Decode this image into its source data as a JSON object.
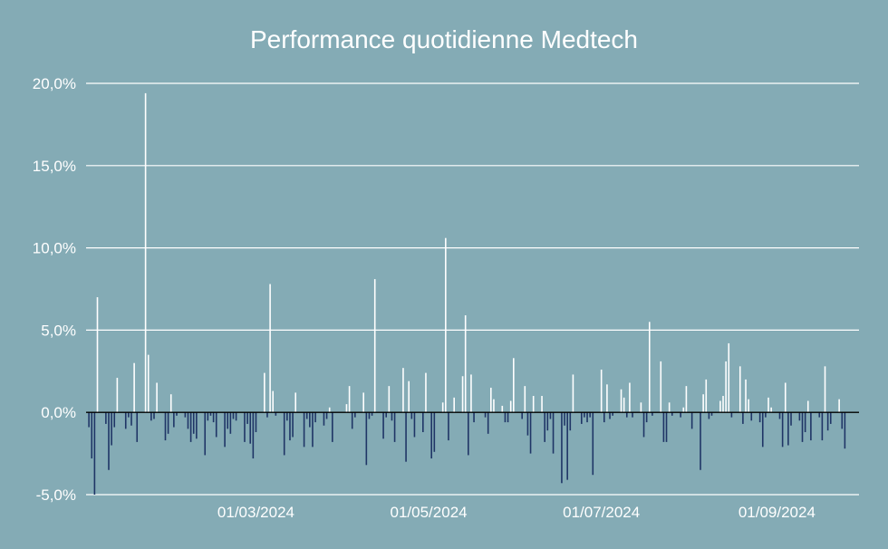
{
  "chart_data": {
    "type": "bar",
    "title": "Performance quotidienne Medtech",
    "xlabel": "",
    "ylabel": "",
    "ylim": [
      -5.0,
      20.0
    ],
    "y_ticks": [
      "-5,0%",
      "0,0%",
      "5,0%",
      "10,0%",
      "15,0%",
      "20,0%"
    ],
    "y_tick_values": [
      -5,
      0,
      5,
      10,
      15,
      20
    ],
    "x_range": [
      "2024-01-01",
      "2024-09-30"
    ],
    "x_ticks": [
      "01/03/2024",
      "01/05/2024",
      "01/07/2024",
      "01/09/2024"
    ],
    "x_tick_dates": [
      "2024-03-01",
      "2024-05-01",
      "2024-07-01",
      "2024-09-01"
    ],
    "grid": true,
    "legend": "none",
    "colors": {
      "background": "#84abb5",
      "positive": "#ffffff",
      "negative": "#1f3566",
      "zero_line": "#000000",
      "grid": "#ffffff"
    },
    "series": [
      {
        "dates": [
          "2024-01-02",
          "2024-01-03",
          "2024-01-04",
          "2024-01-05",
          "2024-01-08",
          "2024-01-09",
          "2024-01-10",
          "2024-01-11",
          "2024-01-12",
          "2024-01-15",
          "2024-01-16",
          "2024-01-17",
          "2024-01-18",
          "2024-01-19",
          "2024-01-22",
          "2024-01-23",
          "2024-01-24",
          "2024-01-25",
          "2024-01-26",
          "2024-01-29",
          "2024-01-30",
          "2024-01-31",
          "2024-02-01",
          "2024-02-02",
          "2024-02-05",
          "2024-02-06",
          "2024-02-07",
          "2024-02-08",
          "2024-02-09",
          "2024-02-12",
          "2024-02-13",
          "2024-02-14",
          "2024-02-15",
          "2024-02-16",
          "2024-02-19",
          "2024-02-20",
          "2024-02-21",
          "2024-02-22",
          "2024-02-23",
          "2024-02-26",
          "2024-02-27",
          "2024-02-28",
          "2024-02-29",
          "2024-03-01",
          "2024-03-04",
          "2024-03-05",
          "2024-03-06",
          "2024-03-07",
          "2024-03-08",
          "2024-03-11",
          "2024-03-12",
          "2024-03-13",
          "2024-03-14",
          "2024-03-15",
          "2024-03-18",
          "2024-03-19",
          "2024-03-20",
          "2024-03-21",
          "2024-03-22",
          "2024-03-25",
          "2024-03-26",
          "2024-03-27",
          "2024-03-28",
          "2024-04-02",
          "2024-04-03",
          "2024-04-04",
          "2024-04-05",
          "2024-04-08",
          "2024-04-09",
          "2024-04-10",
          "2024-04-11",
          "2024-04-12",
          "2024-04-15",
          "2024-04-16",
          "2024-04-17",
          "2024-04-18",
          "2024-04-19",
          "2024-04-22",
          "2024-04-23",
          "2024-04-24",
          "2024-04-25",
          "2024-04-26",
          "2024-04-29",
          "2024-04-30",
          "2024-05-02",
          "2024-05-03",
          "2024-05-06",
          "2024-05-07",
          "2024-05-08",
          "2024-05-10",
          "2024-05-13",
          "2024-05-14",
          "2024-05-15",
          "2024-05-16",
          "2024-05-17",
          "2024-05-21",
          "2024-05-22",
          "2024-05-23",
          "2024-05-24",
          "2024-05-27",
          "2024-05-28",
          "2024-05-29",
          "2024-05-30",
          "2024-05-31",
          "2024-06-03",
          "2024-06-04",
          "2024-06-05",
          "2024-06-06",
          "2024-06-07",
          "2024-06-10",
          "2024-06-11",
          "2024-06-12",
          "2024-06-13",
          "2024-06-14",
          "2024-06-17",
          "2024-06-18",
          "2024-06-19",
          "2024-06-20",
          "2024-06-21",
          "2024-06-24",
          "2024-06-25",
          "2024-06-26",
          "2024-06-27",
          "2024-06-28",
          "2024-07-01",
          "2024-07-02",
          "2024-07-03",
          "2024-07-04",
          "2024-07-05",
          "2024-07-08",
          "2024-07-09",
          "2024-07-10",
          "2024-07-11",
          "2024-07-12",
          "2024-07-15",
          "2024-07-16",
          "2024-07-17",
          "2024-07-18",
          "2024-07-19",
          "2024-07-22",
          "2024-07-23",
          "2024-07-24",
          "2024-07-25",
          "2024-07-26",
          "2024-07-29",
          "2024-07-30",
          "2024-07-31",
          "2024-08-02",
          "2024-08-05",
          "2024-08-06",
          "2024-08-07",
          "2024-08-08",
          "2024-08-09",
          "2024-08-12",
          "2024-08-13",
          "2024-08-14",
          "2024-08-15",
          "2024-08-16",
          "2024-08-19",
          "2024-08-20",
          "2024-08-21",
          "2024-08-22",
          "2024-08-23",
          "2024-08-26",
          "2024-08-27",
          "2024-08-28",
          "2024-08-29",
          "2024-08-30",
          "2024-09-02",
          "2024-09-03",
          "2024-09-04",
          "2024-09-05",
          "2024-09-06",
          "2024-09-09",
          "2024-09-10",
          "2024-09-11",
          "2024-09-12",
          "2024-09-13",
          "2024-09-16",
          "2024-09-17",
          "2024-09-18",
          "2024-09-19",
          "2024-09-20",
          "2024-09-23",
          "2024-09-24",
          "2024-09-25"
        ],
        "values": [
          -0.9,
          -2.8,
          -5.0,
          7.0,
          -0.7,
          -3.5,
          -2.0,
          -0.9,
          2.1,
          -1.0,
          -0.3,
          -0.8,
          3.0,
          -1.8,
          19.4,
          3.5,
          -0.5,
          -0.4,
          1.8,
          -1.7,
          -1.3,
          1.1,
          -0.9,
          -0.2,
          -0.3,
          -1.0,
          -1.8,
          -1.3,
          -1.6,
          -2.6,
          -0.5,
          -0.2,
          -0.6,
          -1.5,
          -2.1,
          -1.0,
          -1.3,
          -0.4,
          -0.5,
          -1.8,
          -0.7,
          -1.9,
          -2.8,
          -1.2,
          2.4,
          -0.3,
          7.8,
          1.3,
          -0.2,
          -2.6,
          -0.5,
          -1.7,
          -1.5,
          1.2,
          -2.1,
          -0.4,
          -0.9,
          -2.1,
          -0.6,
          -0.8,
          -0.4,
          0.3,
          -1.8,
          0.5,
          1.6,
          -1.0,
          -0.3,
          1.2,
          -3.2,
          -0.4,
          -0.2,
          8.1,
          -1.6,
          -0.3,
          1.6,
          -0.5,
          -1.8,
          2.7,
          -3.0,
          1.9,
          -0.4,
          -1.5,
          -1.2,
          2.4,
          -2.8,
          -2.4,
          0.6,
          10.6,
          -1.7,
          0.9,
          2.2,
          5.9,
          -2.6,
          2.3,
          -0.6,
          -0.3,
          -1.3,
          1.5,
          0.8,
          0.4,
          -0.6,
          -0.6,
          0.7,
          3.3,
          -0.4,
          1.6,
          -1.4,
          -2.5,
          1.0,
          1.0,
          -1.8,
          -1.1,
          -0.4,
          -2.5,
          -4.3,
          -0.8,
          -4.1,
          -1.1,
          2.3,
          -0.7,
          -0.3,
          -0.6,
          -0.3,
          -3.8,
          2.6,
          -0.6,
          1.7,
          -0.4,
          -0.2,
          1.4,
          0.9,
          -0.3,
          1.8,
          -0.3,
          0.6,
          -1.5,
          -0.6,
          5.5,
          -0.2,
          3.1,
          -1.8,
          -1.8,
          0.6,
          -0.2,
          -0.3,
          0.3,
          1.6,
          -1.0,
          -3.5,
          1.1,
          2.0,
          -0.4,
          -0.2,
          0.7,
          1.0,
          3.1,
          4.2,
          -0.3,
          2.8,
          -0.7,
          2.0,
          0.8,
          -0.5,
          -0.6,
          -2.1,
          -0.3,
          0.9,
          0.3,
          -0.4,
          -2.1,
          1.8,
          -2.0,
          -0.8,
          -0.5,
          -1.8,
          -1.2,
          0.7,
          -1.7,
          -0.3,
          -1.7,
          2.8,
          -1.1,
          -0.7,
          0.8,
          -1.0,
          -2.2
        ]
      }
    ]
  }
}
